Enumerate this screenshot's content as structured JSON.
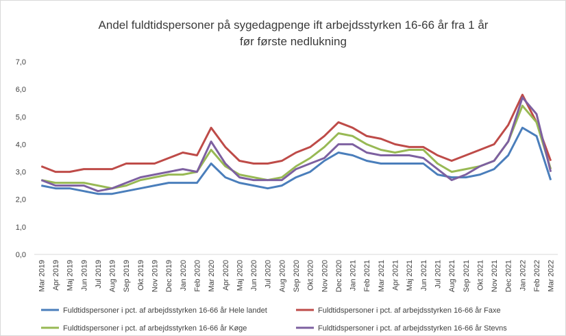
{
  "chart_data": {
    "type": "line",
    "title": [
      "Andel fuldtidspersoner på sygedagpenge ift arbejdsstyrken 16-66 år fra 1 år",
      "før første nedlukning"
    ],
    "categories": [
      "Mar 2019",
      "Apr 2019",
      "Maj 2019",
      "Jun 2019",
      "Jul 2019",
      "Aug 2019",
      "Sep 2019",
      "Okt 2019",
      "Nov 2019",
      "Dec 2019",
      "Jan 2020",
      "Feb 2020",
      "Mar 2020",
      "Apr 2020",
      "Maj 2020",
      "Jun 2020",
      "Jul 2020",
      "Aug 2020",
      "Sep 2020",
      "Okt 2020",
      "Nov 2020",
      "Dec 2020",
      "Jan 2021",
      "Feb 2021",
      "Mar 2021",
      "Apr 2021",
      "Maj 2021",
      "Jun 2021",
      "Jul 2021",
      "Aug 2021",
      "Sep 2021",
      "Okt 2021",
      "Nov 2021",
      "Dec 2021",
      "Jan 2022",
      "Feb 2022",
      "Mar 2022"
    ],
    "series": [
      {
        "name": "Fuldtidspersoner i pct. af arbejdsstyrken 16-66 år Hele landet",
        "color": "#4a7ebb",
        "values": [
          2.5,
          2.4,
          2.4,
          2.3,
          2.2,
          2.2,
          2.3,
          2.4,
          2.5,
          2.6,
          2.6,
          2.6,
          3.3,
          2.8,
          2.6,
          2.5,
          2.4,
          2.5,
          2.8,
          3.0,
          3.4,
          3.7,
          3.6,
          3.4,
          3.3,
          3.3,
          3.3,
          3.3,
          2.9,
          2.8,
          2.8,
          2.9,
          3.1,
          3.6,
          4.6,
          4.3,
          2.7
        ]
      },
      {
        "name": "Fuldtidspersoner i pct. af arbejdsstyrken 16-66 år Faxe",
        "color": "#be4b48",
        "values": [
          3.2,
          3.0,
          3.0,
          3.1,
          3.1,
          3.1,
          3.3,
          3.3,
          3.3,
          3.5,
          3.7,
          3.6,
          4.6,
          3.9,
          3.4,
          3.3,
          3.3,
          3.4,
          3.7,
          3.9,
          4.3,
          4.8,
          4.6,
          4.3,
          4.2,
          4.0,
          3.9,
          3.9,
          3.6,
          3.4,
          3.6,
          3.8,
          4.0,
          4.7,
          5.8,
          4.8,
          3.4
        ]
      },
      {
        "name": "Fuldtidspersoner i pct. af arbejdsstyrken 16-66 år Køge",
        "color": "#98b954",
        "values": [
          2.7,
          2.6,
          2.6,
          2.6,
          2.5,
          2.4,
          2.5,
          2.7,
          2.8,
          2.9,
          2.9,
          3.0,
          3.8,
          3.2,
          2.9,
          2.8,
          2.7,
          2.8,
          3.2,
          3.5,
          3.9,
          4.4,
          4.3,
          4.0,
          3.8,
          3.7,
          3.8,
          3.8,
          3.3,
          3.0,
          3.1,
          3.2,
          3.4,
          4.1,
          5.4,
          4.8,
          3.1
        ]
      },
      {
        "name": "Fuldtidspersoner i pct. af arbejdsstyrken 16-66 år Stevns",
        "color": "#7d60a0",
        "values": [
          2.7,
          2.5,
          2.5,
          2.5,
          2.3,
          2.4,
          2.6,
          2.8,
          2.9,
          3.0,
          3.1,
          3.0,
          4.1,
          3.3,
          2.8,
          2.7,
          2.7,
          2.7,
          3.1,
          3.3,
          3.5,
          4.0,
          4.0,
          3.7,
          3.6,
          3.6,
          3.6,
          3.5,
          3.1,
          2.7,
          2.9,
          3.2,
          3.4,
          4.1,
          5.7,
          5.1,
          3.0
        ]
      }
    ],
    "ylim": [
      0,
      7
    ],
    "yticks": [
      {
        "value": 0,
        "label": "0,0"
      },
      {
        "value": 1,
        "label": "1,0"
      },
      {
        "value": 2,
        "label": "2,0"
      },
      {
        "value": 3,
        "label": "3,0"
      },
      {
        "value": 4,
        "label": "4,0"
      },
      {
        "value": 5,
        "label": "5,0"
      },
      {
        "value": 6,
        "label": "6,0"
      },
      {
        "value": 7,
        "label": "7,0"
      }
    ],
    "grid": false,
    "legend": "bottom"
  }
}
